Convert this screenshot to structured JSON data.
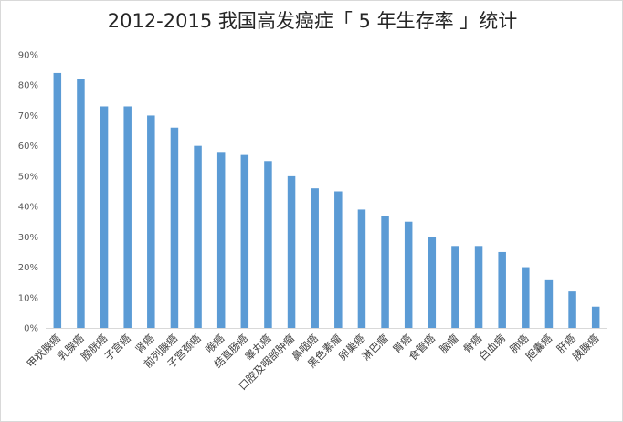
{
  "chart_data": {
    "type": "bar",
    "title": "2012-2015 我国高发癌症「 5 年生存率 」统计",
    "xlabel": "",
    "ylabel": "",
    "ylim": [
      0,
      90
    ],
    "y_ticks": [
      "0%",
      "10%",
      "20%",
      "30%",
      "40%",
      "50%",
      "60%",
      "70%",
      "80%",
      "90%"
    ],
    "grid": false,
    "legend": "none",
    "bar_color": "#5b9bd5",
    "categories": [
      "甲状腺癌",
      "乳腺癌",
      "膀胱癌",
      "子宫癌",
      "肾癌",
      "前列腺癌",
      "子宫颈癌",
      "喉癌",
      "结直肠癌",
      "睾丸癌",
      "口腔及咽部肿瘤",
      "鼻咽癌",
      "黑色素瘤",
      "卵巢癌",
      "淋巴瘤",
      "胃癌",
      "食管癌",
      "脑瘤",
      "骨癌",
      "白血病",
      "肺癌",
      "胆囊癌",
      "肝癌",
      "胰腺癌"
    ],
    "values": [
      84,
      82,
      73,
      73,
      70,
      66,
      60,
      58,
      57,
      55,
      50,
      46,
      45,
      39,
      37,
      35,
      30,
      27,
      27,
      25,
      20,
      16,
      12,
      7
    ]
  }
}
